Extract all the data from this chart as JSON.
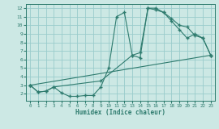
{
  "xlabel": "Humidex (Indice chaleur)",
  "background_color": "#cce8e4",
  "grid_color": "#99cccc",
  "line_color": "#2e7b6e",
  "xlim": [
    -0.5,
    23.5
  ],
  "ylim": [
    1.2,
    12.5
  ],
  "yticks": [
    2,
    3,
    4,
    5,
    6,
    7,
    8,
    9,
    10,
    11,
    12
  ],
  "xticks": [
    0,
    1,
    2,
    3,
    4,
    5,
    6,
    7,
    8,
    9,
    10,
    11,
    12,
    13,
    14,
    15,
    16,
    17,
    18,
    19,
    20,
    21,
    22,
    23
  ],
  "curve1_x": [
    0,
    1,
    2,
    3,
    4,
    5,
    6,
    7,
    8,
    9,
    10,
    11,
    12,
    13,
    14,
    15,
    16,
    17,
    18,
    19,
    20,
    21,
    22,
    23
  ],
  "curve1_y": [
    3.0,
    2.2,
    2.3,
    2.8,
    2.1,
    1.7,
    1.7,
    1.8,
    1.8,
    2.8,
    5.0,
    11.0,
    11.5,
    6.5,
    6.2,
    12.0,
    12.0,
    11.5,
    10.5,
    9.5,
    8.5,
    9.0,
    8.5,
    6.5
  ],
  "curve2_x": [
    0,
    1,
    2,
    3,
    9,
    13,
    14,
    15,
    16,
    17,
    18,
    19,
    20,
    21,
    22,
    23
  ],
  "curve2_y": [
    3.0,
    2.2,
    2.3,
    2.8,
    3.5,
    6.5,
    6.8,
    12.0,
    11.8,
    11.5,
    10.8,
    10.0,
    9.8,
    8.8,
    8.5,
    6.5
  ],
  "curve3_x": [
    0,
    23
  ],
  "curve3_y": [
    3.0,
    6.5
  ]
}
